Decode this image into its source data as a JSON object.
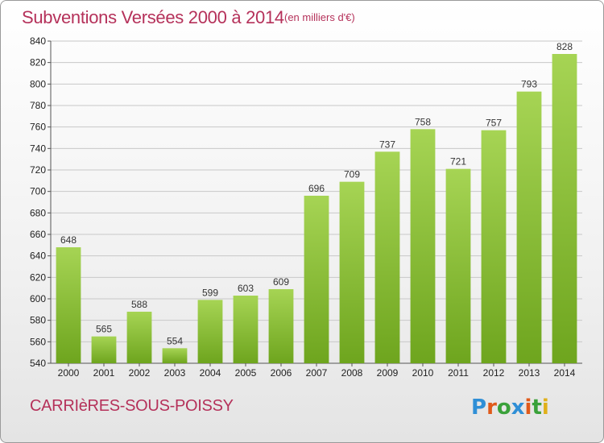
{
  "header": {
    "title": "Subventions Versées 2000 à 2014",
    "subtitle": "(en milliers d'€)"
  },
  "footer": {
    "commune": "CARRIèRES-SOUS-POISSY",
    "logo_text": "Proxiti",
    "logo_colors": [
      "#2f8fd6",
      "#e05a1a",
      "#3aa13a",
      "#2f8fd6",
      "#e05a1a",
      "#3aa13a",
      "#e0b01a"
    ]
  },
  "colors": {
    "title": "#b5315a",
    "bar_top": "#a6d454",
    "bar_bottom": "#6ea51e",
    "grid": "#c8c8c8"
  },
  "chart_data": {
    "type": "bar",
    "categories": [
      "2000",
      "2001",
      "2002",
      "2003",
      "2004",
      "2005",
      "2006",
      "2007",
      "2008",
      "2009",
      "2010",
      "2011",
      "2012",
      "2013",
      "2014"
    ],
    "values": [
      648,
      565,
      588,
      554,
      599,
      603,
      609,
      696,
      709,
      737,
      758,
      721,
      757,
      793,
      828
    ],
    "ylim": [
      540,
      840
    ],
    "yticks": [
      540,
      560,
      580,
      600,
      620,
      640,
      660,
      680,
      700,
      720,
      740,
      760,
      780,
      800,
      820,
      840
    ],
    "grid": true,
    "title": "Subventions Versées 2000 à 2014",
    "xlabel": "",
    "ylabel": ""
  }
}
